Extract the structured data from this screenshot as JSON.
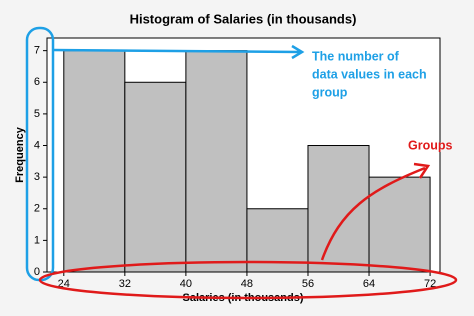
{
  "chart_data": {
    "type": "histogram",
    "title": "Histogram of Salaries (in thousands)",
    "x_label": "Salaries (in thousands)",
    "y_label": "Frequency",
    "bins": [
      24,
      32,
      40,
      48,
      56,
      64,
      72
    ],
    "values": [
      7,
      6,
      7,
      2,
      4,
      3
    ],
    "color": "#c0c0c0",
    "xlim": [
      21.8,
      73.3
    ],
    "xticks": [
      24,
      32,
      40,
      48,
      56,
      64,
      72
    ],
    "ylim": [
      0,
      7.4
    ],
    "yticks": [
      0,
      1,
      2,
      3,
      4,
      5,
      6,
      7
    ],
    "annotations": [
      {
        "lines": [
          "The number of",
          "data values in each",
          "group"
        ],
        "color": "#1ea0e6"
      },
      {
        "lines": [
          "Groups"
        ],
        "color": "#e01a1a"
      }
    ]
  }
}
